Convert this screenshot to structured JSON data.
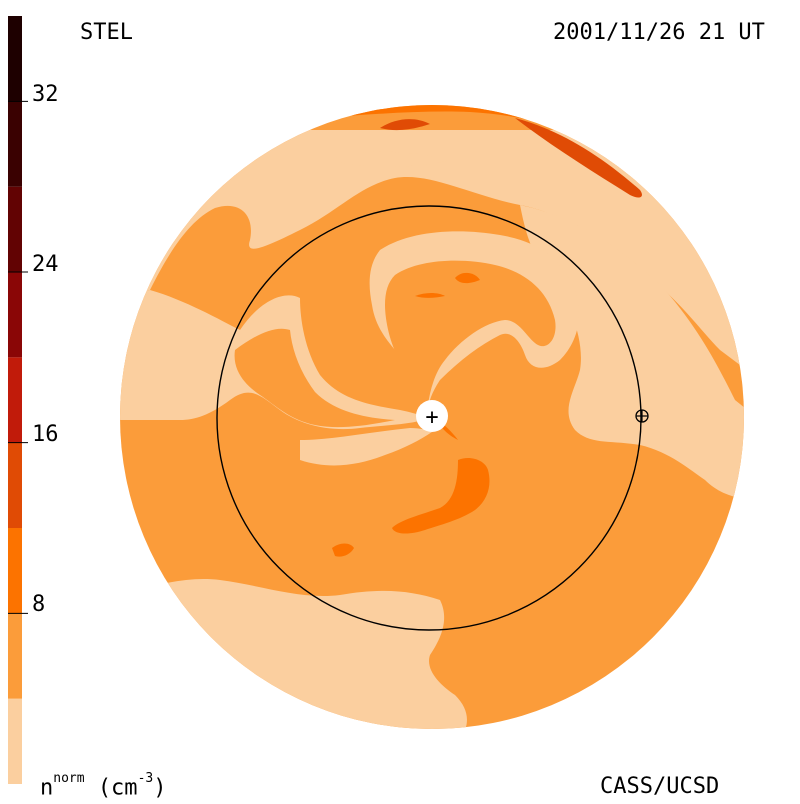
{
  "header": {
    "instrument": "STEL",
    "datetime": "2001/11/26 21 UT"
  },
  "footer": {
    "credit": "CASS/UCSD",
    "unit_base": "n",
    "unit_sup": "norm",
    "unit_rest": "(cm",
    "unit_exp": "-3",
    "unit_close": ")"
  },
  "colorbar": {
    "ticks": [
      "32",
      "24",
      "16",
      "8"
    ],
    "levels": [
      {
        "range": [
          0,
          4
        ],
        "color": "#fbcf9f"
      },
      {
        "range": [
          4,
          8
        ],
        "color": "#fb9c3a"
      },
      {
        "range": [
          8,
          12
        ],
        "color": "#fc7300"
      },
      {
        "range": [
          12,
          16
        ],
        "color": "#e04b05"
      },
      {
        "range": [
          16,
          20
        ],
        "color": "#c11b0a"
      },
      {
        "range": [
          20,
          24
        ],
        "color": "#8a0606"
      },
      {
        "range": [
          24,
          28
        ],
        "color": "#620303"
      },
      {
        "range": [
          28,
          32
        ],
        "color": "#3a0101"
      },
      {
        "range": [
          32,
          36
        ],
        "color": "#1e0000"
      }
    ]
  },
  "markers": {
    "sun_symbol": "+",
    "earth_symbol": "⊕"
  }
}
